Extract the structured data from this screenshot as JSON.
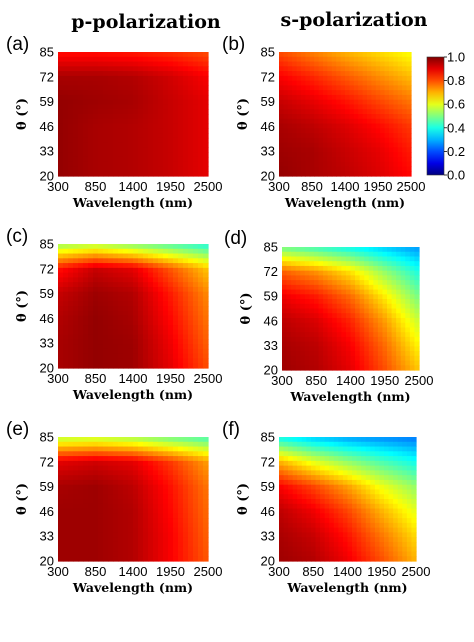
{
  "column_titles": [
    "p-polarization",
    "s-polarization"
  ],
  "colorbar": {
    "ticks": [
      "1.0",
      "0.8",
      "0.6",
      "0.4",
      "0.2",
      "0.0"
    ],
    "range": [
      0.0,
      1.0
    ],
    "colormap": "jet"
  },
  "chart_data": [
    {
      "type": "heatmap",
      "panel": "(a)",
      "polarization": "p",
      "xlabel": "Wavelength (nm)",
      "ylabel": "θ (°)",
      "xticks": [
        "300",
        "850",
        "1400",
        "1950",
        "2500"
      ],
      "yticks": [
        "20",
        "33",
        "46",
        "59",
        "72",
        "85"
      ],
      "xlim": [
        300,
        2500
      ],
      "ylim": [
        20,
        85
      ],
      "x": [
        300,
        850,
        1400,
        1950,
        2500
      ],
      "y": [
        20,
        33,
        46,
        59,
        72,
        85
      ],
      "z": [
        [
          0.98,
          0.96,
          0.95,
          0.93,
          0.9
        ],
        [
          0.98,
          0.96,
          0.95,
          0.93,
          0.9
        ],
        [
          0.98,
          0.96,
          0.95,
          0.93,
          0.9
        ],
        [
          0.98,
          0.97,
          0.96,
          0.93,
          0.9
        ],
        [
          0.96,
          0.96,
          0.95,
          0.92,
          0.88
        ],
        [
          0.86,
          0.86,
          0.85,
          0.83,
          0.8
        ]
      ]
    },
    {
      "type": "heatmap",
      "panel": "(b)",
      "polarization": "s",
      "xlabel": "Wavelength (nm)",
      "ylabel": "θ (°)",
      "xticks": [
        "300",
        "850",
        "1400",
        "1950",
        "2500"
      ],
      "yticks": [
        "20",
        "33",
        "46",
        "59",
        "72",
        "85"
      ],
      "xlim": [
        300,
        2500
      ],
      "ylim": [
        20,
        85
      ],
      "x": [
        300,
        850,
        1400,
        1950,
        2500
      ],
      "y": [
        20,
        33,
        46,
        59,
        72,
        85
      ],
      "z": [
        [
          0.98,
          0.96,
          0.94,
          0.91,
          0.87
        ],
        [
          0.97,
          0.96,
          0.93,
          0.9,
          0.85
        ],
        [
          0.96,
          0.94,
          0.91,
          0.87,
          0.82
        ],
        [
          0.93,
          0.9,
          0.86,
          0.81,
          0.76
        ],
        [
          0.88,
          0.84,
          0.79,
          0.74,
          0.69
        ],
        [
          0.8,
          0.75,
          0.7,
          0.66,
          0.62
        ]
      ]
    },
    {
      "type": "heatmap",
      "panel": "(c)",
      "polarization": "p",
      "xlabel": "Wavelength (nm)",
      "ylabel": "θ (°)",
      "xticks": [
        "300",
        "850",
        "1400",
        "1950",
        "2500"
      ],
      "yticks": [
        "20",
        "33",
        "46",
        "59",
        "72",
        "85"
      ],
      "xlim": [
        300,
        2500
      ],
      "ylim": [
        20,
        85
      ],
      "x": [
        300,
        850,
        1400,
        1950,
        2500
      ],
      "y": [
        20,
        33,
        46,
        59,
        72,
        85
      ],
      "z": [
        [
          0.96,
          0.98,
          0.97,
          0.9,
          0.8
        ],
        [
          0.96,
          0.98,
          0.97,
          0.89,
          0.78
        ],
        [
          0.95,
          0.98,
          0.96,
          0.87,
          0.76
        ],
        [
          0.93,
          0.97,
          0.95,
          0.85,
          0.74
        ],
        [
          0.86,
          0.93,
          0.9,
          0.79,
          0.68
        ],
        [
          0.52,
          0.55,
          0.5,
          0.45,
          0.4
        ]
      ]
    },
    {
      "type": "heatmap",
      "panel": "(d)",
      "polarization": "s",
      "xlabel": "Wavelength (nm)",
      "ylabel": "θ (°)",
      "xticks": [
        "300",
        "850",
        "1400",
        "1950",
        "2500"
      ],
      "yticks": [
        "20",
        "33",
        "46",
        "59",
        "72",
        "85"
      ],
      "xlim": [
        300,
        2500
      ],
      "ylim": [
        20,
        85
      ],
      "x": [
        300,
        850,
        1400,
        1950,
        2500
      ],
      "y": [
        20,
        33,
        46,
        59,
        72,
        85
      ],
      "z": [
        [
          0.97,
          0.95,
          0.9,
          0.8,
          0.68
        ],
        [
          0.96,
          0.94,
          0.88,
          0.77,
          0.63
        ],
        [
          0.94,
          0.91,
          0.84,
          0.72,
          0.57
        ],
        [
          0.89,
          0.85,
          0.77,
          0.64,
          0.49
        ],
        [
          0.78,
          0.73,
          0.65,
          0.52,
          0.4
        ],
        [
          0.48,
          0.43,
          0.38,
          0.32,
          0.27
        ]
      ]
    },
    {
      "type": "heatmap",
      "panel": "(e)",
      "polarization": "p",
      "xlabel": "Wavelength (nm)",
      "ylabel": "θ (°)",
      "xticks": [
        "300",
        "850",
        "1400",
        "1950",
        "2500"
      ],
      "yticks": [
        "20",
        "33",
        "46",
        "59",
        "72",
        "85"
      ],
      "xlim": [
        300,
        2500
      ],
      "ylim": [
        20,
        85
      ],
      "x": [
        300,
        850,
        1400,
        1950,
        2500
      ],
      "y": [
        20,
        33,
        46,
        59,
        72,
        85
      ],
      "z": [
        [
          0.97,
          0.97,
          0.95,
          0.88,
          0.79
        ],
        [
          0.97,
          0.97,
          0.95,
          0.88,
          0.78
        ],
        [
          0.97,
          0.97,
          0.95,
          0.87,
          0.77
        ],
        [
          0.96,
          0.97,
          0.94,
          0.86,
          0.76
        ],
        [
          0.9,
          0.92,
          0.9,
          0.82,
          0.72
        ],
        [
          0.55,
          0.56,
          0.53,
          0.48,
          0.44
        ]
      ]
    },
    {
      "type": "heatmap",
      "panel": "(f)",
      "polarization": "s",
      "xlabel": "Wavelength (nm)",
      "ylabel": "θ (°)",
      "xticks": [
        "300",
        "850",
        "1400",
        "1950",
        "2500"
      ],
      "yticks": [
        "20",
        "33",
        "46",
        "59",
        "72",
        "85"
      ],
      "xlim": [
        300,
        2500
      ],
      "ylim": [
        20,
        85
      ],
      "x": [
        300,
        850,
        1400,
        1950,
        2500
      ],
      "y": [
        20,
        33,
        46,
        59,
        72,
        85
      ],
      "z": [
        [
          0.97,
          0.95,
          0.89,
          0.8,
          0.7
        ],
        [
          0.96,
          0.93,
          0.86,
          0.76,
          0.66
        ],
        [
          0.94,
          0.89,
          0.81,
          0.7,
          0.6
        ],
        [
          0.88,
          0.81,
          0.72,
          0.61,
          0.52
        ],
        [
          0.7,
          0.6,
          0.52,
          0.45,
          0.39
        ],
        [
          0.38,
          0.32,
          0.28,
          0.26,
          0.24
        ]
      ]
    }
  ]
}
